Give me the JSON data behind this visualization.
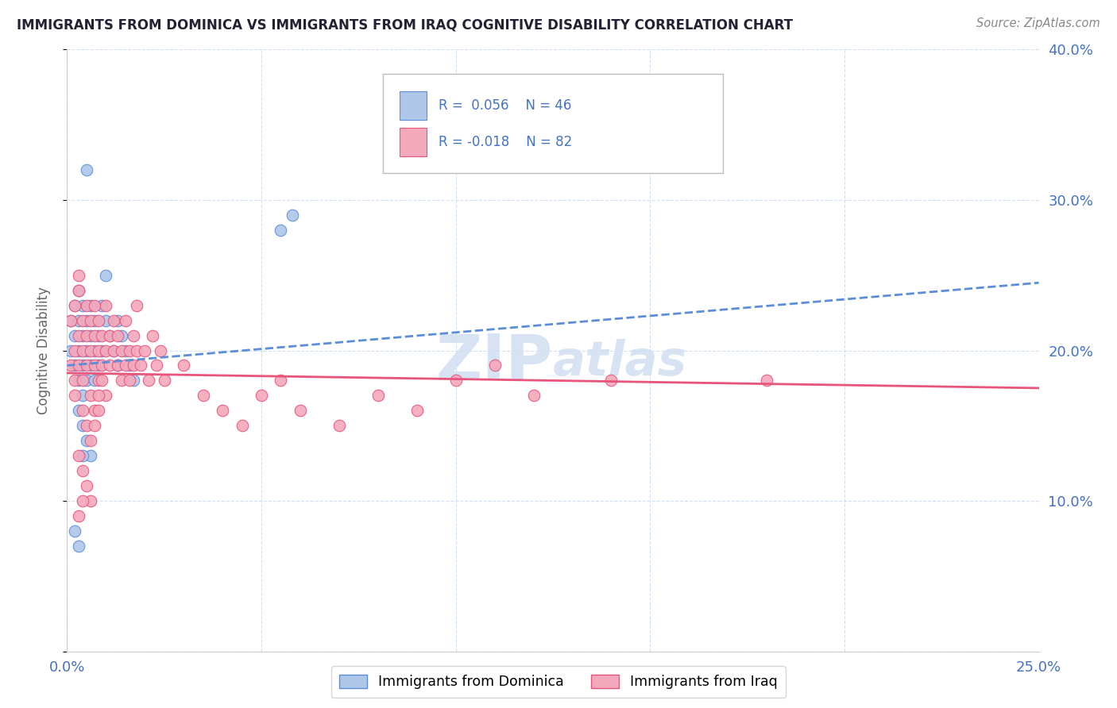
{
  "title": "IMMIGRANTS FROM DOMINICA VS IMMIGRANTS FROM IRAQ COGNITIVE DISABILITY CORRELATION CHART",
  "source": "Source: ZipAtlas.com",
  "ylabel": "Cognitive Disability",
  "xlim": [
    0.0,
    0.25
  ],
  "ylim": [
    0.0,
    0.4
  ],
  "dominica_color": "#aec6e8",
  "iraq_color": "#f4a8bc",
  "dominica_line_color": "#5b8dd9",
  "iraq_line_color": "#e8547a",
  "watermark_color": "#d0dff0",
  "background_color": "#ffffff",
  "grid_color": "#d0e0f0",
  "title_color": "#222233",
  "axis_label_color": "#4472c4",
  "legend_r1": "R =  0.056",
  "legend_n1": "N = 46",
  "legend_r2": "R = -0.018",
  "legend_n2": "N = 82"
}
